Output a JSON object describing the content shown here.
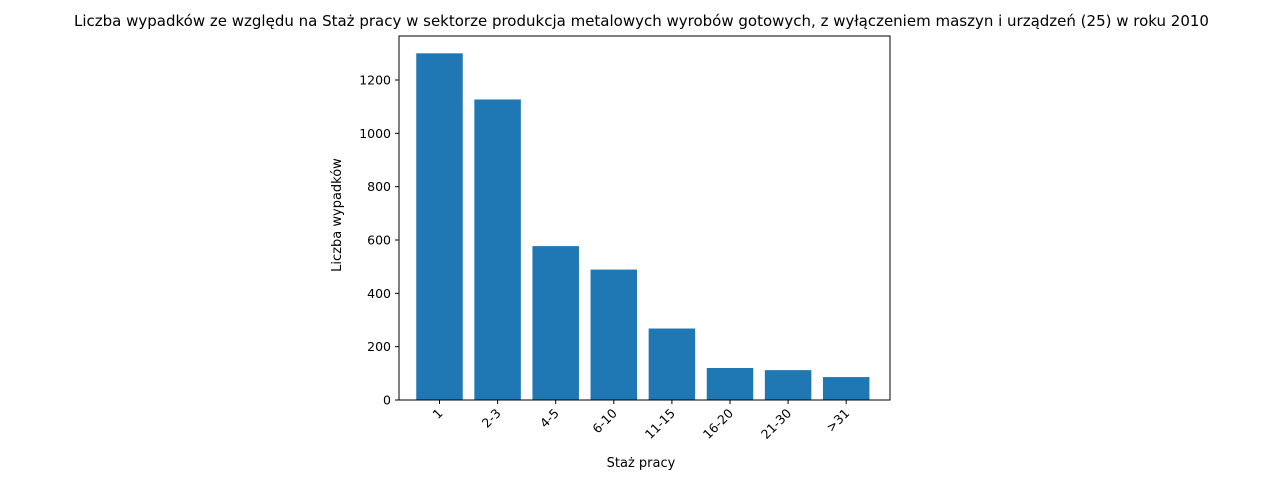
{
  "chart_data": {
    "type": "bar",
    "title": "Liczba wypadków ze względu na Staż pracy w sektorze produkcja metalowych wyrobów gotowych, z wyłączeniem maszyn i urządzeń (25) w roku 2010",
    "xlabel": "Staż pracy",
    "ylabel": "Liczba wypadków",
    "categories": [
      "1",
      "2-3",
      "4-5",
      "6-10",
      "11-15",
      "16-20",
      "21-30",
      ">31"
    ],
    "values": [
      1300,
      1127,
      577,
      489,
      268,
      120,
      112,
      86
    ],
    "ylim": [
      0,
      1365
    ],
    "yticks": [
      0,
      200,
      400,
      600,
      800,
      1000,
      1200
    ],
    "grid": false,
    "bar_color": "#1f77b4",
    "xtick_rotation_deg": 45
  }
}
